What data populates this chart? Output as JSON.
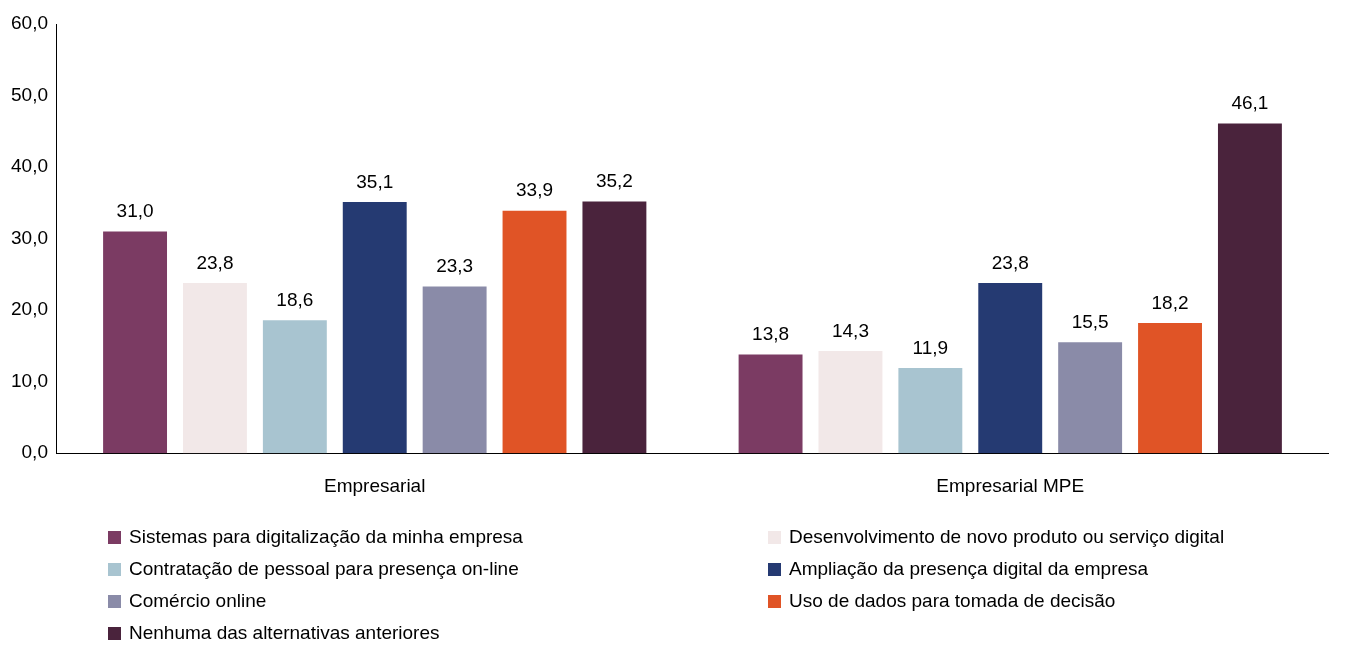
{
  "chart_data": {
    "type": "bar",
    "categories": [
      "Empresarial",
      "Empresarial MPE"
    ],
    "series": [
      {
        "name": "Sistemas para digitalização da minha empresa",
        "color": "#7b3b63",
        "values": [
          31.0,
          13.8
        ],
        "value_labels": [
          "31,0",
          "13,8"
        ]
      },
      {
        "name": "Desenvolvimento de novo produto ou serviço digital",
        "color": "#f2e8e8",
        "values": [
          23.8,
          14.3
        ],
        "value_labels": [
          "23,8",
          "14,3"
        ]
      },
      {
        "name": "Contratação de pessoal para presença on-line",
        "color": "#a8c4d0",
        "values": [
          18.6,
          11.9
        ],
        "value_labels": [
          "18,6",
          "11,9"
        ]
      },
      {
        "name": "Ampliação da presença digital da empresa",
        "color": "#253a72",
        "values": [
          35.1,
          23.8
        ],
        "value_labels": [
          "35,1",
          "23,8"
        ]
      },
      {
        "name": "Comércio online",
        "color": "#8a8ba8",
        "values": [
          23.3,
          15.5
        ],
        "value_labels": [
          "23,3",
          "15,5"
        ]
      },
      {
        "name": "Uso de dados para tomada de decisão",
        "color": "#e05426",
        "values": [
          33.9,
          18.2
        ],
        "value_labels": [
          "33,9",
          "18,2"
        ]
      },
      {
        "name": "Nenhuma das alternativas anteriores",
        "color": "#4a233c",
        "values": [
          35.2,
          46.1
        ],
        "value_labels": [
          "35,2",
          "46,1"
        ]
      }
    ],
    "ylim": [
      0,
      60
    ],
    "yticks": [
      {
        "value": 0,
        "label": "0,0"
      },
      {
        "value": 10,
        "label": "10,0"
      },
      {
        "value": 20,
        "label": "20,0"
      },
      {
        "value": 30,
        "label": "30,0"
      },
      {
        "value": 40,
        "label": "40,0"
      },
      {
        "value": 50,
        "label": "50,0"
      },
      {
        "value": 60,
        "label": "60,0"
      }
    ],
    "grid": false,
    "legend": "bottom"
  }
}
